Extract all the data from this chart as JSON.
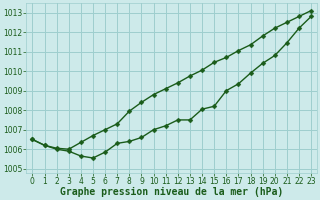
{
  "xlabel": "Graphe pression niveau de la mer (hPa)",
  "background_color": "#cdeaea",
  "grid_color": "#9ecece",
  "line_color": "#1a5c1a",
  "xlim": [
    -0.5,
    23.5
  ],
  "ylim": [
    1004.8,
    1013.5
  ],
  "yticks": [
    1005,
    1006,
    1007,
    1008,
    1009,
    1010,
    1011,
    1012,
    1013
  ],
  "xticks": [
    0,
    1,
    2,
    3,
    4,
    5,
    6,
    7,
    8,
    9,
    10,
    11,
    12,
    13,
    14,
    15,
    16,
    17,
    18,
    19,
    20,
    21,
    22,
    23
  ],
  "series1_x": [
    0,
    1,
    2,
    3,
    4,
    5,
    6,
    7,
    8,
    9,
    10,
    11,
    12,
    13,
    14,
    15,
    16,
    17,
    18,
    19,
    20,
    21,
    22,
    23
  ],
  "series1_y": [
    1006.5,
    1006.2,
    1006.0,
    1005.9,
    1005.65,
    1005.55,
    1005.85,
    1006.3,
    1006.4,
    1006.6,
    1007.0,
    1007.2,
    1007.5,
    1007.5,
    1008.05,
    1008.2,
    1009.0,
    1009.35,
    1009.9,
    1010.4,
    1010.8,
    1011.45,
    1012.2,
    1012.8
  ],
  "series2_x": [
    0,
    1,
    2,
    3,
    4,
    5,
    6,
    7,
    8,
    9,
    10,
    11,
    12,
    13,
    14,
    15,
    16,
    17,
    18,
    19,
    20,
    21,
    22,
    23
  ],
  "series2_y": [
    1006.5,
    1006.2,
    1006.05,
    1006.0,
    1006.35,
    1006.7,
    1007.0,
    1007.3,
    1007.95,
    1008.4,
    1008.8,
    1009.1,
    1009.4,
    1009.75,
    1010.05,
    1010.45,
    1010.7,
    1011.05,
    1011.35,
    1011.8,
    1012.2,
    1012.5,
    1012.8,
    1013.1
  ],
  "marker_size": 2.5,
  "line_width": 1.0,
  "xlabel_fontsize": 7,
  "tick_fontsize": 5.5,
  "xlabel_color": "#1a5c1a",
  "tick_label_color": "#1a5c1a"
}
